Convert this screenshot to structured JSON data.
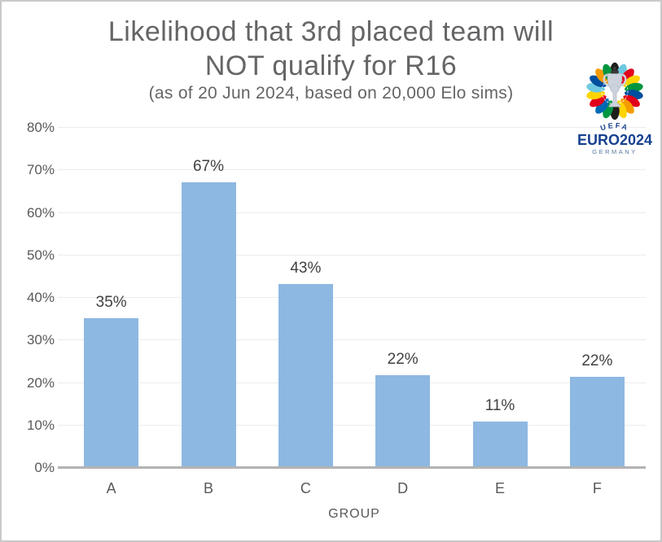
{
  "header": {
    "title_line1": "Likelihood that 3rd placed team will",
    "title_line2": "NOT qualify for R16",
    "subtitle": "(as of 20 Jun 2024, based on 20,000 Elo sims)"
  },
  "logo": {
    "uefa": "UEFA",
    "euro_year": "EURO2024",
    "country": "GERMANY",
    "navy": "#17418f",
    "country_color": "#54779f",
    "trophy_color": "#ccd3dc",
    "trophy_outline": "#a9b2c0",
    "petal_colors": [
      "#1d1d1b",
      "#6ec9e0",
      "#e2001a",
      "#ffd400",
      "#009640",
      "#004f9f",
      "#e2001a",
      "#f59c00",
      "#ffd400",
      "#1d1d1b",
      "#009640",
      "#0069b4",
      "#e2001a",
      "#ffd400",
      "#6ec9e0",
      "#004f9f",
      "#f59c00",
      "#009640"
    ]
  },
  "chart_data": {
    "type": "bar",
    "title": "Likelihood that 3rd placed team will NOT qualify for R16",
    "subtitle": "(as of 20 Jun 2024, based on 20,000 Elo sims)",
    "categories": [
      "A",
      "B",
      "C",
      "D",
      "E",
      "F"
    ],
    "values": [
      35.2,
      67.2,
      43.3,
      21.9,
      11.0,
      21.5
    ],
    "value_labels": [
      "35%",
      "67%",
      "43%",
      "22%",
      "11%",
      "22%"
    ],
    "xlabel": "GROUP",
    "ylabel": "",
    "ylim": [
      0,
      80
    ],
    "ytick_step": 10,
    "ytick_labels": [
      "0%",
      "10%",
      "20%",
      "30%",
      "40%",
      "50%",
      "60%",
      "70%",
      "80%"
    ],
    "grid": true,
    "legend": null,
    "bar_color": "#8db8e2",
    "grid_color": "#ececec",
    "axis_line_color": "#b3b3b3",
    "data_label_color": "#414141",
    "tick_label_color": "#58595b",
    "title_color": "#646567"
  }
}
